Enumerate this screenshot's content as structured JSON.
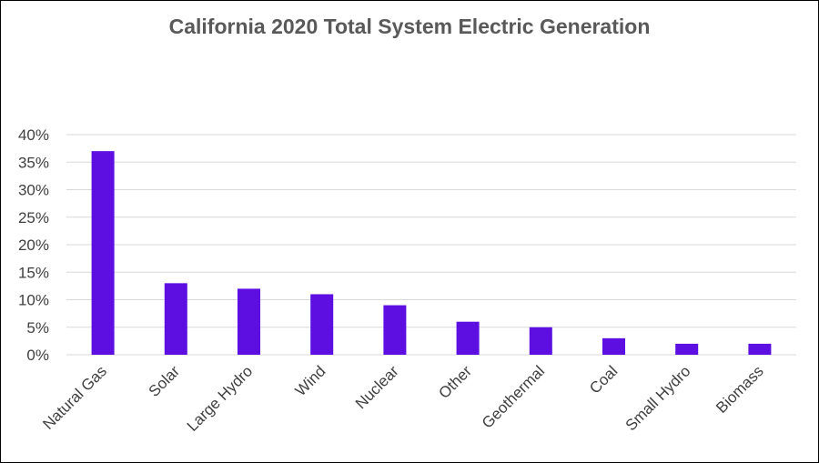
{
  "chart_data": {
    "type": "bar",
    "title": "California 2020 Total System Electric Generation",
    "xlabel": "",
    "ylabel": "",
    "categories": [
      "Natural Gas",
      "Solar",
      "Large Hydro",
      "Wind",
      "Nuclear",
      "Other",
      "Geothermal",
      "Coal",
      "Small Hydro",
      "Biomass"
    ],
    "values": [
      37,
      13,
      12,
      11,
      9,
      6,
      5,
      3,
      2,
      2
    ],
    "ylim": [
      0,
      40
    ],
    "y_ticks": [
      "0%",
      "5%",
      "10%",
      "15%",
      "20%",
      "25%",
      "30%",
      "35%",
      "40%"
    ],
    "grid": true,
    "bar_color": "#5c0fe0",
    "grid_color": "#d9d9d9"
  }
}
